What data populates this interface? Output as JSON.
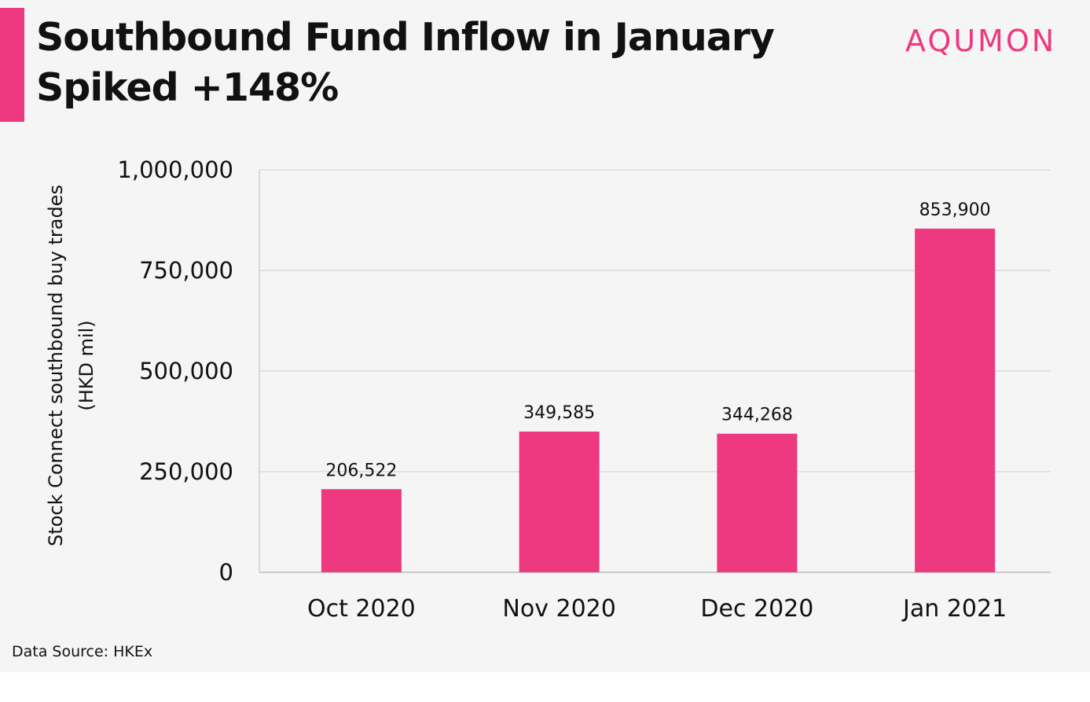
{
  "header": {
    "title_line1": "Southbound Fund Inflow in January",
    "title_line2": "Spiked +148%",
    "logo_text": "AQUMON"
  },
  "footer": {
    "source": "Data Source: HKEx"
  },
  "colors": {
    "accent": "#ee3980",
    "bar": "#ee3980",
    "panel_background": "#f5f5f5",
    "grid": "#cfcfcf"
  },
  "chart_data": {
    "type": "bar",
    "title": "Southbound Fund Inflow in January Spiked +148%",
    "categories": [
      "Oct 2020",
      "Nov 2020",
      "Dec 2020",
      "Jan 2021"
    ],
    "values": [
      206522,
      349585,
      344268,
      853900
    ],
    "data_labels": [
      "206,522",
      "349,585",
      "344,268",
      "853,900"
    ],
    "xlabel": "",
    "ylabel_line1": "Stock Connect southbound buy trades",
    "ylabel_line2": "(HKD mil)",
    "ylim": [
      0,
      1000000
    ],
    "yticks": [
      0,
      250000,
      500000,
      750000,
      1000000
    ],
    "ytick_labels": [
      "0",
      "250,000",
      "500,000",
      "750,000",
      "1,000,000"
    ],
    "grid": true,
    "legend": "none"
  }
}
